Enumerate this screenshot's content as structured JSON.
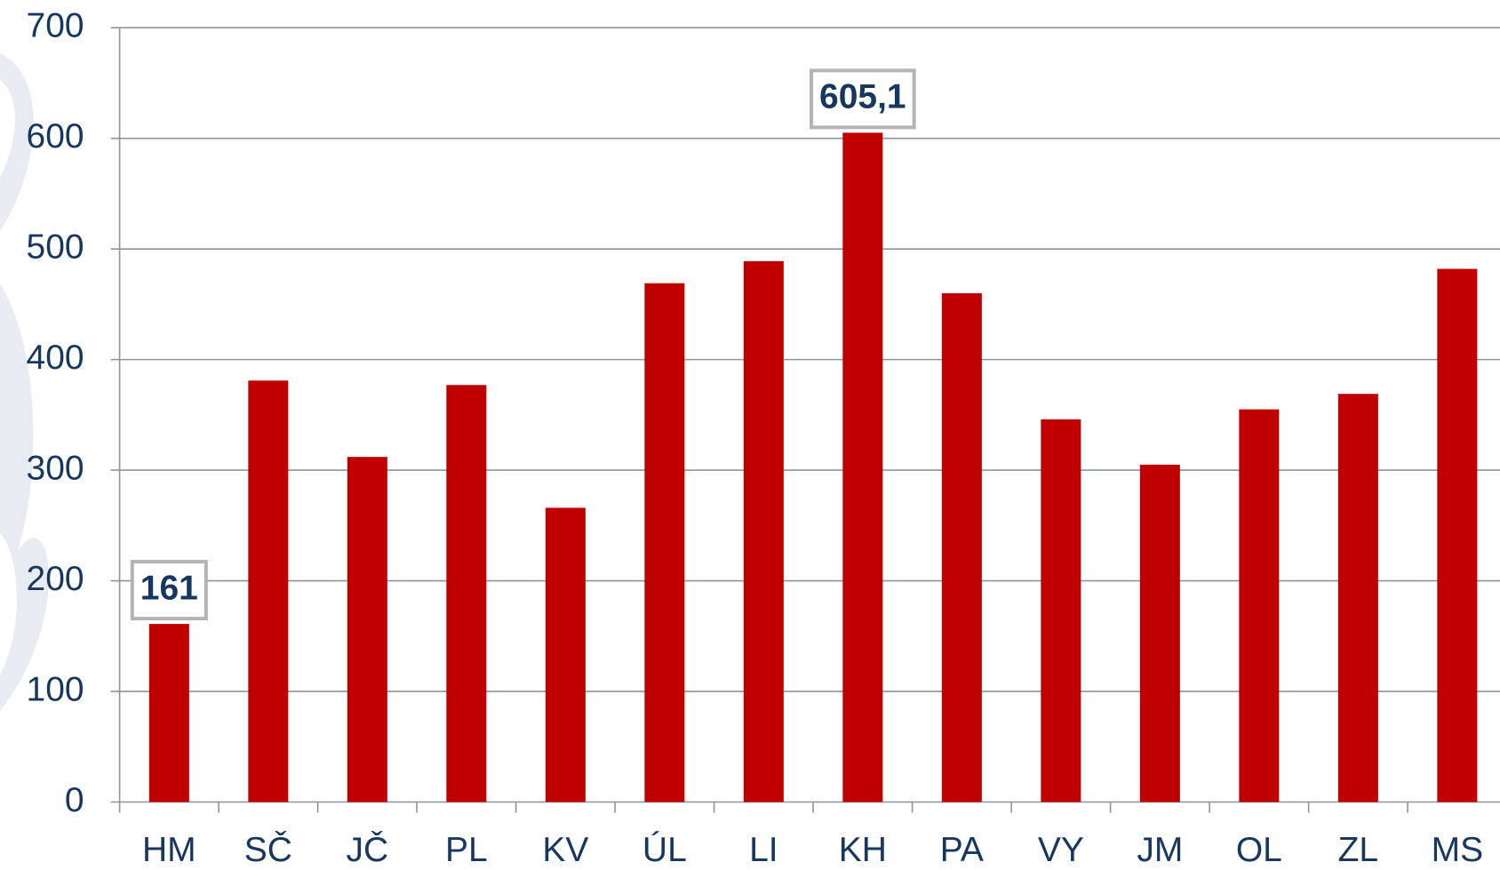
{
  "chart_data": {
    "type": "bar",
    "categories": [
      "HM",
      "SČ",
      "JČ",
      "PL",
      "KV",
      "ÚL",
      "LI",
      "KH",
      "PA",
      "VY",
      "JM",
      "OL",
      "ZL",
      "MS"
    ],
    "values": [
      161,
      381,
      312,
      377,
      266,
      469,
      489,
      605.1,
      460,
      346,
      305,
      355,
      369,
      482
    ],
    "value_labels": [
      "161",
      null,
      null,
      null,
      null,
      null,
      null,
      "605,1",
      null,
      null,
      null,
      null,
      null,
      null
    ],
    "color": "#c00000",
    "ylim": [
      0,
      700
    ],
    "yticks": [
      0,
      100,
      200,
      300,
      400,
      500,
      600,
      700
    ],
    "grid": true
  }
}
